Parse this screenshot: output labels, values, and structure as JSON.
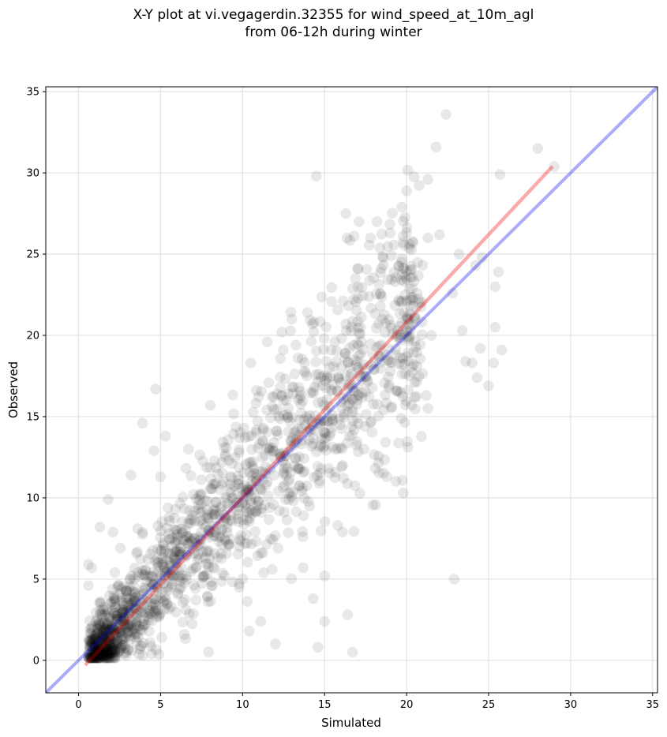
{
  "chart_data": {
    "type": "scatter",
    "title_line1": "X-Y plot at vi.vegagerdin.32355 for wind_speed_at_10m_agl",
    "title_line2": "from 06-12h during winter",
    "xlabel": "Simulated",
    "ylabel": "Observed",
    "xlim": [
      -2,
      35.3
    ],
    "ylim": [
      -2,
      35.3
    ],
    "xticks": [
      0,
      5,
      10,
      15,
      20,
      25,
      30,
      35
    ],
    "yticks": [
      0,
      5,
      10,
      15,
      20,
      25,
      30,
      35
    ],
    "grid": true,
    "point_color": "#000000",
    "point_alpha": 0.09,
    "identity_line": {
      "x": [
        -2,
        35.3
      ],
      "y": [
        -2,
        35.3
      ],
      "color": "#0000ee",
      "alpha": 0.33
    },
    "regression_line": {
      "x": [
        0.4,
        28.9
      ],
      "y": [
        -0.3,
        30.4
      ],
      "color": "#ee0000",
      "alpha": 0.33
    },
    "outlier_points": [
      [
        22.4,
        33.6
      ],
      [
        28.0,
        31.5
      ],
      [
        21.8,
        31.6
      ],
      [
        29.0,
        30.4
      ],
      [
        25.7,
        29.9
      ],
      [
        14.5,
        29.8
      ],
      [
        21.3,
        29.6
      ],
      [
        20.0,
        28.9
      ],
      [
        19.7,
        27.9
      ],
      [
        16.3,
        27.5
      ],
      [
        17.8,
        26.0
      ],
      [
        22.0,
        26.2
      ],
      [
        25.6,
        23.9
      ],
      [
        24.2,
        24.3
      ],
      [
        24.6,
        24.8
      ],
      [
        23.4,
        20.3
      ],
      [
        24.5,
        19.2
      ],
      [
        25.4,
        23.0
      ],
      [
        25.8,
        19.1
      ],
      [
        25.4,
        20.5
      ],
      [
        24.3,
        17.4
      ],
      [
        25.0,
        16.9
      ],
      [
        23.6,
        18.4
      ],
      [
        25.3,
        18.3
      ],
      [
        24.0,
        18.3
      ],
      [
        22.9,
        5.0
      ],
      [
        16.7,
        0.5
      ],
      [
        15.0,
        2.4
      ],
      [
        16.4,
        2.8
      ],
      [
        14.6,
        0.8
      ],
      [
        12.0,
        1.0
      ],
      [
        10.4,
        1.8
      ],
      [
        11.1,
        2.4
      ],
      [
        14.3,
        3.8
      ],
      [
        15.0,
        5.2
      ],
      [
        19.8,
        10.3
      ],
      [
        18.8,
        11.3
      ],
      [
        4.7,
        16.7
      ],
      [
        3.9,
        14.6
      ],
      [
        5.3,
        13.8
      ],
      [
        4.6,
        12.9
      ],
      [
        6.7,
        13.0
      ],
      [
        3.2,
        11.4
      ],
      [
        1.8,
        9.9
      ],
      [
        13.0,
        21.0
      ],
      [
        12.4,
        20.2
      ],
      [
        11.5,
        19.6
      ],
      [
        10.5,
        18.3
      ],
      [
        21.3,
        15.5
      ],
      [
        21.2,
        16.3
      ],
      [
        20.5,
        16.2
      ],
      [
        19.1,
        15.6
      ],
      [
        17.4,
        13.0
      ],
      [
        16.1,
        12.0
      ],
      [
        15.8,
        8.3
      ],
      [
        16.1,
        7.9
      ],
      [
        13.7,
        5.7
      ],
      [
        11.8,
        5.6
      ],
      [
        9.8,
        4.5
      ],
      [
        7.9,
        3.6
      ],
      [
        2.1,
        7.9
      ],
      [
        1.3,
        8.2
      ],
      [
        0.8,
        5.7
      ],
      [
        0.6,
        5.9
      ],
      [
        0.6,
        4.6
      ],
      [
        3.6,
        8.1
      ],
      [
        5.9,
        9.3
      ],
      [
        5.0,
        11.3
      ],
      [
        19.0,
        26.3
      ],
      [
        17.1,
        27.0
      ],
      [
        18.2,
        27.0
      ],
      [
        16.8,
        26.1
      ],
      [
        21.3,
        26.0
      ],
      [
        23.2,
        25.0
      ],
      [
        21.5,
        20.0
      ],
      [
        20.2,
        22.2
      ],
      [
        22.8,
        22.6
      ],
      [
        18.4,
        21.8
      ]
    ]
  }
}
